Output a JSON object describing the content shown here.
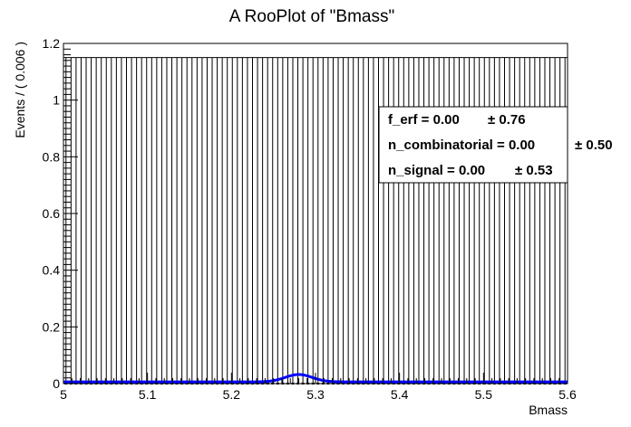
{
  "chart_data": {
    "type": "line",
    "title": "A RooPlot of \"Bmass\"",
    "xlabel": "Bmass",
    "ylabel": "Events / ( 0.006 )",
    "xlim": [
      5.0,
      5.6
    ],
    "ylim": [
      0,
      1.2
    ],
    "x_ticks": [
      5,
      5.1,
      5.2,
      5.3,
      5.4,
      5.5,
      5.6
    ],
    "x_tick_labels": [
      "5",
      "5.1",
      "5.2",
      "5.3",
      "5.4",
      "5.5",
      "5.6"
    ],
    "y_ticks": [
      0,
      0.2,
      0.4,
      0.6,
      0.8,
      1,
      1.2
    ],
    "y_tick_labels": [
      "0",
      "0.2",
      "0.4",
      "0.6",
      "0.8",
      "1",
      "1.2"
    ],
    "bin_width": 0.006,
    "data_points": {
      "bin_count": 100,
      "value": 0,
      "error_up": 1.15
    },
    "fit_curve": {
      "color": "#0000ff",
      "baseline": 0.006,
      "peak_x": 5.28,
      "peak_y": 0.032,
      "sigma": 0.016
    },
    "stats_box": [
      {
        "label": "f_erf =  0.00",
        "error": "± 0.76"
      },
      {
        "label": "n_combinatorial =  0.00",
        "error": "± 0.50"
      },
      {
        "label": "n_signal =  0.00",
        "error": "± 0.53"
      }
    ]
  }
}
